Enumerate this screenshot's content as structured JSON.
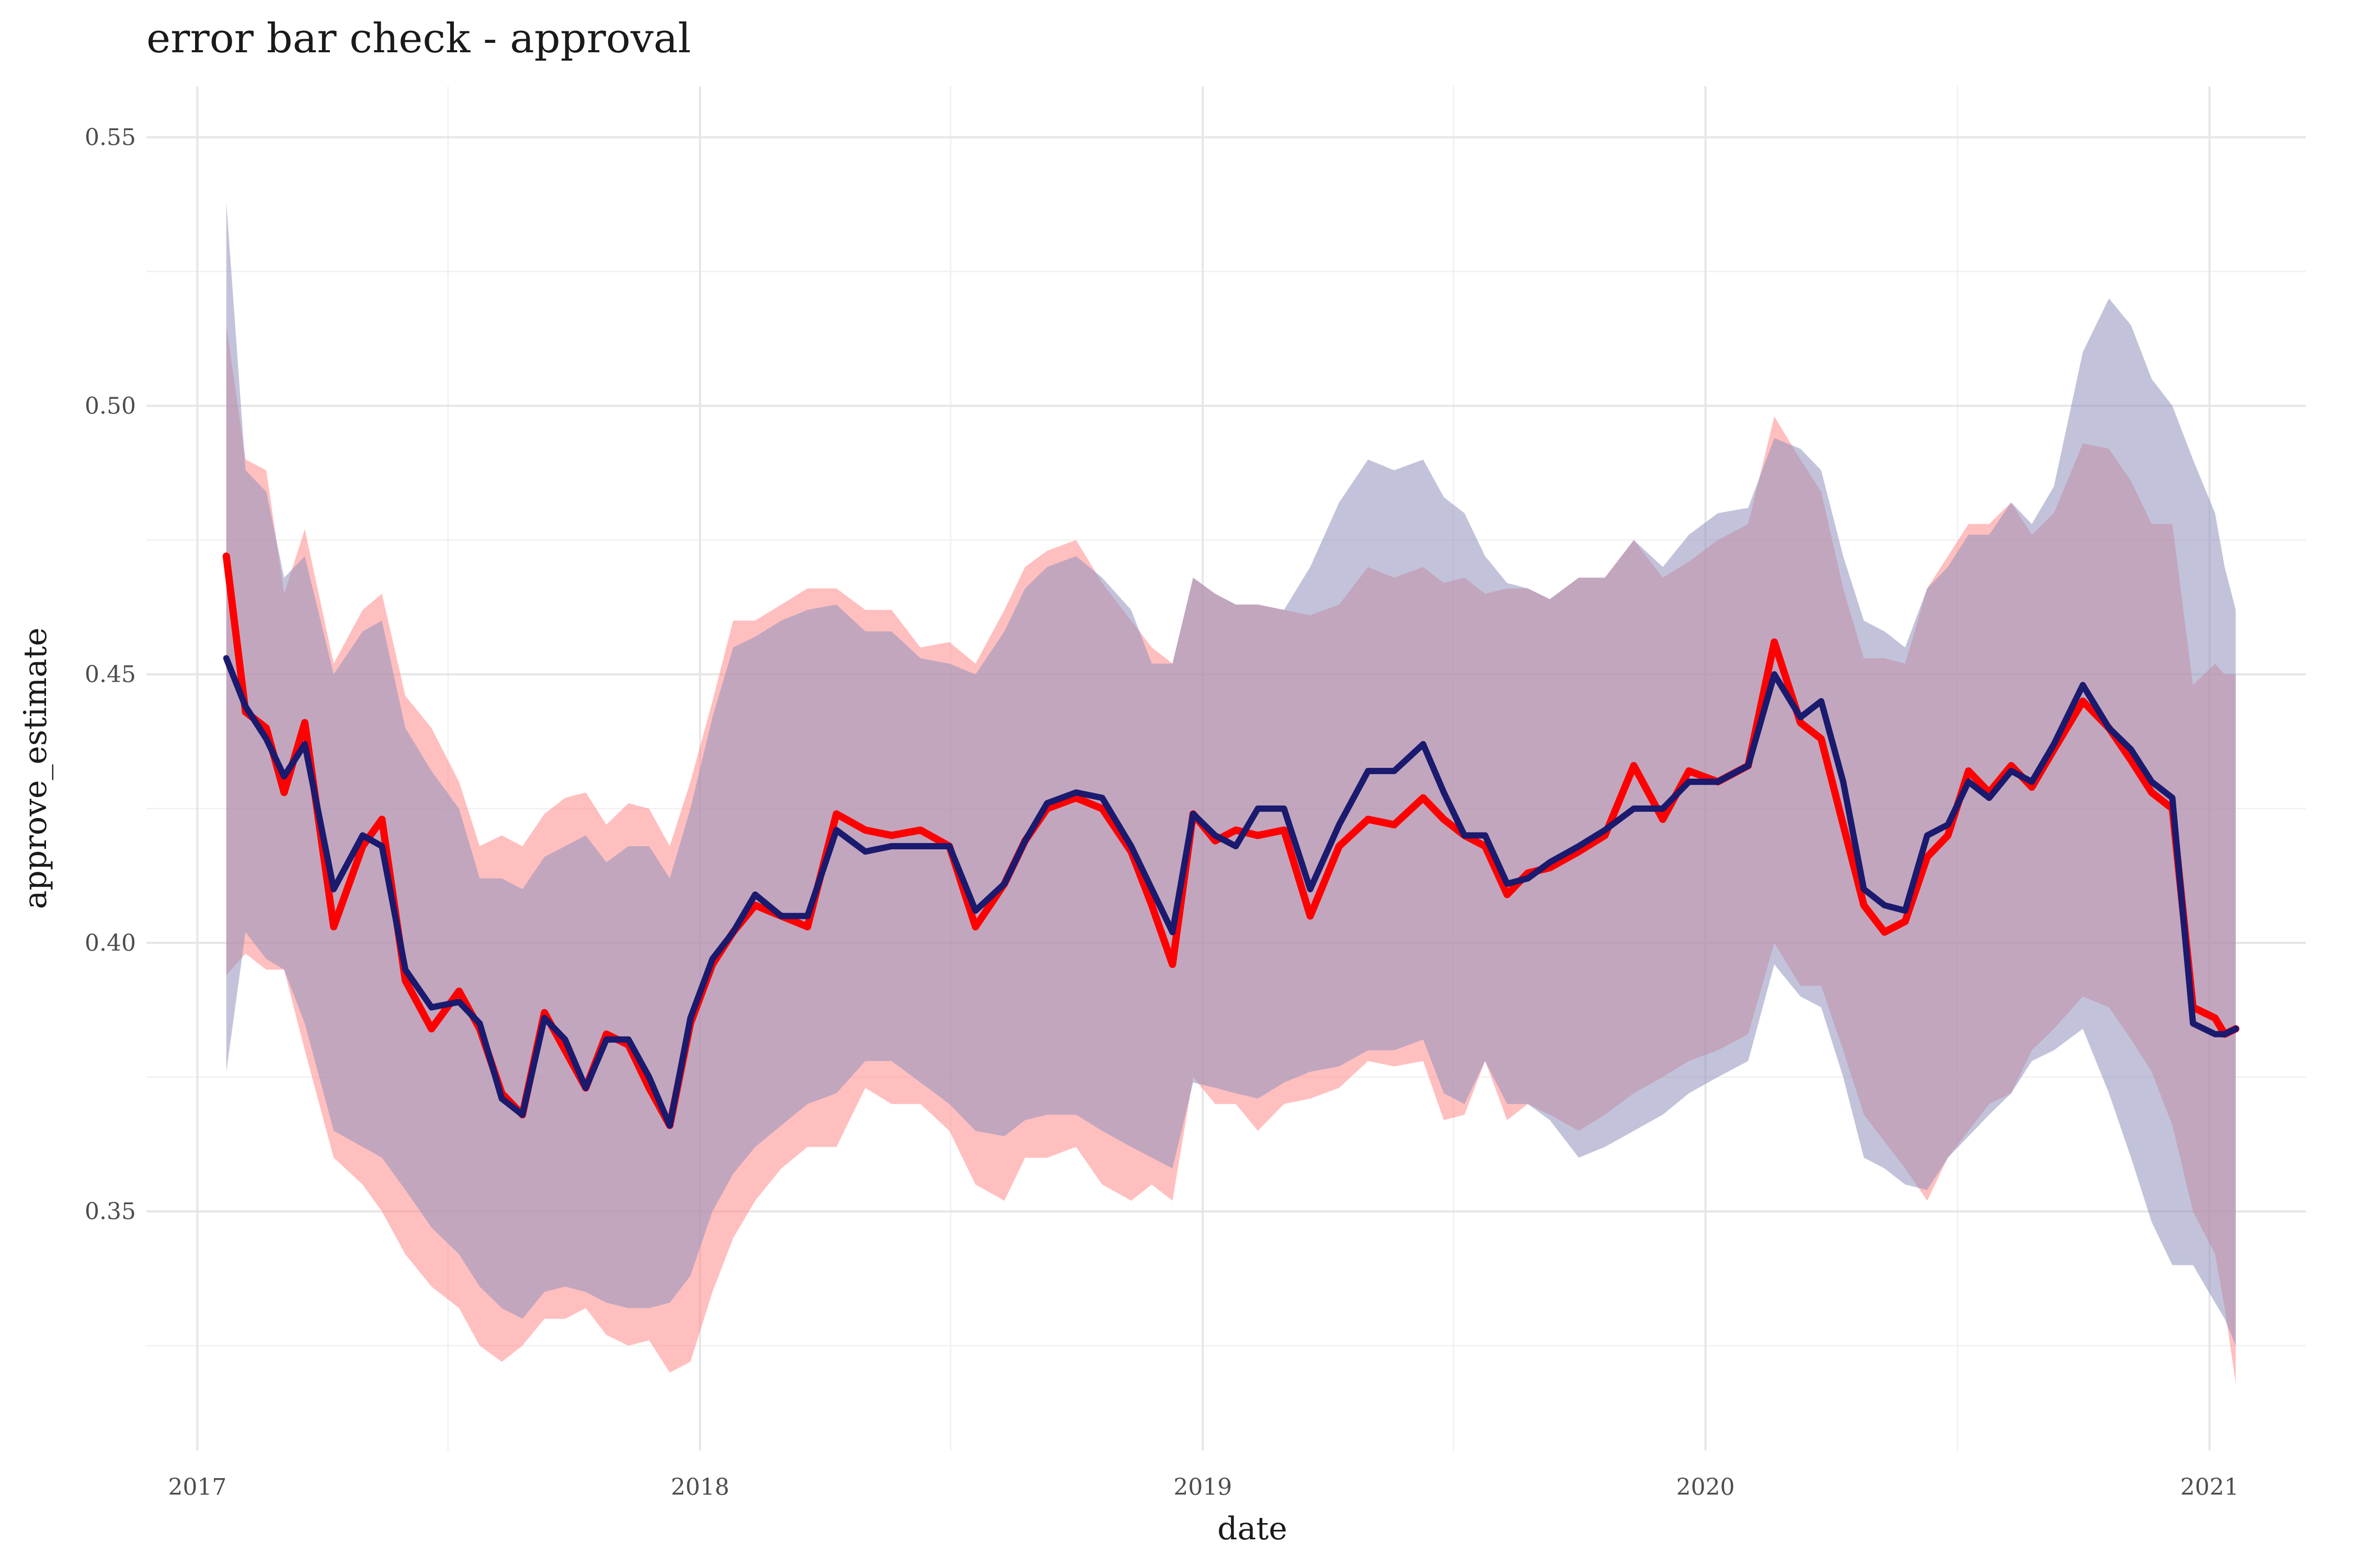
{
  "chart_data": {
    "type": "area",
    "title": "error bar check - approval",
    "xlabel": "date",
    "ylabel": "approve_estimate",
    "x_ticks": [
      "2017",
      "2018",
      "2019",
      "2020",
      "2021"
    ],
    "y_ticks": [
      "0.35",
      "0.40",
      "0.45",
      "0.50",
      "0.55"
    ],
    "xlim": [
      "2016-11-25",
      "2021-03-12"
    ],
    "ylim": [
      0.3055,
      0.5595
    ],
    "grid": true,
    "legend": "none",
    "series": [
      {
        "color": "#ff0000",
        "fill_color": "#ff7f7f",
        "x": [
          "2017-01-22",
          "2017-02-05",
          "2017-02-20",
          "2017-03-05",
          "2017-03-20",
          "2017-04-10",
          "2017-05-01",
          "2017-05-15",
          "2017-06-01",
          "2017-06-20",
          "2017-07-10",
          "2017-07-25",
          "2017-08-10",
          "2017-08-25",
          "2017-09-10",
          "2017-09-25",
          "2017-10-10",
          "2017-10-25",
          "2017-11-10",
          "2017-11-25",
          "2017-12-10",
          "2017-12-25",
          "2018-01-10",
          "2018-01-25",
          "2018-02-10",
          "2018-03-01",
          "2018-03-20",
          "2018-04-10",
          "2018-05-01",
          "2018-05-20",
          "2018-06-10",
          "2018-07-01",
          "2018-07-20",
          "2018-08-10",
          "2018-08-25",
          "2018-09-10",
          "2018-10-01",
          "2018-10-20",
          "2018-11-10",
          "2018-11-25",
          "2018-12-10",
          "2018-12-25",
          "2019-01-10",
          "2019-01-25",
          "2019-02-10",
          "2019-03-01",
          "2019-03-20",
          "2019-04-10",
          "2019-05-01",
          "2019-05-20",
          "2019-06-10",
          "2019-06-25",
          "2019-07-10",
          "2019-07-25",
          "2019-08-10",
          "2019-08-25",
          "2019-09-10",
          "2019-10-01",
          "2019-10-20",
          "2019-11-10",
          "2019-12-01",
          "2019-12-20",
          "2020-01-10",
          "2020-02-01",
          "2020-02-20",
          "2020-03-10",
          "2020-03-25",
          "2020-04-10",
          "2020-04-25",
          "2020-05-10",
          "2020-05-25",
          "2020-06-10",
          "2020-06-25",
          "2020-07-10",
          "2020-07-25",
          "2020-08-10",
          "2020-08-25",
          "2020-09-10",
          "2020-10-01",
          "2020-10-20",
          "2020-11-05",
          "2020-11-20",
          "2020-12-05",
          "2020-12-20",
          "2021-01-05",
          "2021-01-12",
          "2021-01-20"
        ],
        "values": [
          0.472,
          0.443,
          0.44,
          0.428,
          0.441,
          0.403,
          0.418,
          0.423,
          0.393,
          0.384,
          0.391,
          0.384,
          0.372,
          0.368,
          0.387,
          0.38,
          0.373,
          0.383,
          0.381,
          0.373,
          0.366,
          0.385,
          0.396,
          0.402,
          0.407,
          0.405,
          0.403,
          0.424,
          0.421,
          0.42,
          0.421,
          0.418,
          0.403,
          0.411,
          0.419,
          0.425,
          0.427,
          0.425,
          0.417,
          0.407,
          0.396,
          0.424,
          0.419,
          0.421,
          0.42,
          0.421,
          0.405,
          0.418,
          0.423,
          0.422,
          0.427,
          0.423,
          0.42,
          0.418,
          0.409,
          0.413,
          0.414,
          0.417,
          0.42,
          0.433,
          0.423,
          0.432,
          0.43,
          0.433,
          0.456,
          0.441,
          0.438,
          0.422,
          0.407,
          0.402,
          0.404,
          0.416,
          0.42,
          0.432,
          0.428,
          0.433,
          0.429,
          0.436,
          0.445,
          0.44,
          0.434,
          0.428,
          0.425,
          0.388,
          0.386,
          0.383,
          0.384
        ],
        "lower": [
          0.394,
          0.398,
          0.395,
          0.395,
          0.38,
          0.36,
          0.355,
          0.35,
          0.342,
          0.336,
          0.332,
          0.325,
          0.322,
          0.325,
          0.33,
          0.33,
          0.332,
          0.327,
          0.325,
          0.326,
          0.32,
          0.322,
          0.335,
          0.345,
          0.352,
          0.358,
          0.362,
          0.362,
          0.373,
          0.37,
          0.37,
          0.365,
          0.355,
          0.352,
          0.36,
          0.36,
          0.362,
          0.355,
          0.352,
          0.355,
          0.352,
          0.375,
          0.37,
          0.37,
          0.365,
          0.37,
          0.371,
          0.373,
          0.378,
          0.377,
          0.378,
          0.367,
          0.368,
          0.378,
          0.367,
          0.37,
          0.368,
          0.365,
          0.368,
          0.372,
          0.375,
          0.378,
          0.38,
          0.383,
          0.4,
          0.392,
          0.392,
          0.38,
          0.368,
          0.363,
          0.358,
          0.352,
          0.36,
          0.365,
          0.37,
          0.372,
          0.38,
          0.384,
          0.39,
          0.388,
          0.382,
          0.376,
          0.366,
          0.35,
          0.342,
          0.332,
          0.318
        ],
        "upper": [
          0.515,
          0.49,
          0.488,
          0.465,
          0.477,
          0.452,
          0.462,
          0.465,
          0.446,
          0.44,
          0.43,
          0.418,
          0.42,
          0.418,
          0.424,
          0.427,
          0.428,
          0.422,
          0.426,
          0.425,
          0.418,
          0.43,
          0.445,
          0.46,
          0.46,
          0.463,
          0.466,
          0.466,
          0.462,
          0.462,
          0.455,
          0.456,
          0.452,
          0.462,
          0.47,
          0.473,
          0.475,
          0.467,
          0.46,
          0.455,
          0.452,
          0.468,
          0.465,
          0.463,
          0.463,
          0.462,
          0.461,
          0.463,
          0.47,
          0.468,
          0.47,
          0.467,
          0.468,
          0.465,
          0.466,
          0.466,
          0.464,
          0.468,
          0.468,
          0.475,
          0.468,
          0.471,
          0.475,
          0.478,
          0.498,
          0.49,
          0.484,
          0.466,
          0.453,
          0.453,
          0.452,
          0.466,
          0.472,
          0.478,
          0.478,
          0.482,
          0.476,
          0.48,
          0.493,
          0.492,
          0.486,
          0.478,
          0.478,
          0.448,
          0.452,
          0.45,
          0.45
        ]
      },
      {
        "color": "#1a1a6e",
        "fill_color": "#8f92bd",
        "x": [
          "2017-01-22",
          "2017-02-05",
          "2017-02-20",
          "2017-03-05",
          "2017-03-20",
          "2017-04-10",
          "2017-05-01",
          "2017-05-15",
          "2017-06-01",
          "2017-06-20",
          "2017-07-10",
          "2017-07-25",
          "2017-08-10",
          "2017-08-25",
          "2017-09-10",
          "2017-09-25",
          "2017-10-10",
          "2017-10-25",
          "2017-11-10",
          "2017-11-25",
          "2017-12-10",
          "2017-12-25",
          "2018-01-10",
          "2018-01-25",
          "2018-02-10",
          "2018-03-01",
          "2018-03-20",
          "2018-04-10",
          "2018-05-01",
          "2018-05-20",
          "2018-06-10",
          "2018-07-01",
          "2018-07-20",
          "2018-08-10",
          "2018-08-25",
          "2018-09-10",
          "2018-10-01",
          "2018-10-20",
          "2018-11-10",
          "2018-11-25",
          "2018-12-10",
          "2018-12-25",
          "2019-01-10",
          "2019-01-25",
          "2019-02-10",
          "2019-03-01",
          "2019-03-20",
          "2019-04-10",
          "2019-05-01",
          "2019-05-20",
          "2019-06-10",
          "2019-06-25",
          "2019-07-10",
          "2019-07-25",
          "2019-08-10",
          "2019-08-25",
          "2019-09-10",
          "2019-10-01",
          "2019-10-20",
          "2019-11-10",
          "2019-12-01",
          "2019-12-20",
          "2020-01-10",
          "2020-02-01",
          "2020-02-20",
          "2020-03-10",
          "2020-03-25",
          "2020-04-10",
          "2020-04-25",
          "2020-05-10",
          "2020-05-25",
          "2020-06-10",
          "2020-06-25",
          "2020-07-10",
          "2020-07-25",
          "2020-08-10",
          "2020-08-25",
          "2020-09-10",
          "2020-10-01",
          "2020-10-20",
          "2020-11-05",
          "2020-11-20",
          "2020-12-05",
          "2020-12-20",
          "2021-01-05",
          "2021-01-12",
          "2021-01-20"
        ],
        "values": [
          0.453,
          0.444,
          0.438,
          0.431,
          0.437,
          0.41,
          0.42,
          0.418,
          0.395,
          0.388,
          0.389,
          0.385,
          0.371,
          0.368,
          0.386,
          0.382,
          0.373,
          0.382,
          0.382,
          0.375,
          0.366,
          0.386,
          0.397,
          0.402,
          0.409,
          0.405,
          0.405,
          0.421,
          0.417,
          0.418,
          0.418,
          0.418,
          0.406,
          0.411,
          0.419,
          0.426,
          0.428,
          0.427,
          0.418,
          0.41,
          0.402,
          0.424,
          0.42,
          0.418,
          0.425,
          0.425,
          0.41,
          0.422,
          0.432,
          0.432,
          0.437,
          0.428,
          0.42,
          0.42,
          0.411,
          0.412,
          0.415,
          0.418,
          0.421,
          0.425,
          0.425,
          0.43,
          0.43,
          0.433,
          0.45,
          0.442,
          0.445,
          0.43,
          0.41,
          0.407,
          0.406,
          0.42,
          0.422,
          0.43,
          0.427,
          0.432,
          0.43,
          0.437,
          0.448,
          0.44,
          0.436,
          0.43,
          0.427,
          0.385,
          0.383,
          0.383,
          0.384
        ],
        "lower": [
          0.376,
          0.402,
          0.397,
          0.395,
          0.385,
          0.365,
          0.362,
          0.36,
          0.354,
          0.347,
          0.342,
          0.336,
          0.332,
          0.33,
          0.335,
          0.336,
          0.335,
          0.333,
          0.332,
          0.332,
          0.333,
          0.338,
          0.35,
          0.357,
          0.362,
          0.366,
          0.37,
          0.372,
          0.378,
          0.378,
          0.374,
          0.37,
          0.365,
          0.364,
          0.367,
          0.368,
          0.368,
          0.365,
          0.362,
          0.36,
          0.358,
          0.374,
          0.373,
          0.372,
          0.371,
          0.374,
          0.376,
          0.377,
          0.38,
          0.38,
          0.382,
          0.372,
          0.37,
          0.378,
          0.37,
          0.37,
          0.367,
          0.36,
          0.362,
          0.365,
          0.368,
          0.372,
          0.375,
          0.378,
          0.396,
          0.39,
          0.388,
          0.375,
          0.36,
          0.358,
          0.355,
          0.354,
          0.36,
          0.364,
          0.368,
          0.372,
          0.378,
          0.38,
          0.384,
          0.372,
          0.36,
          0.348,
          0.34,
          0.34,
          0.333,
          0.33,
          0.325
        ],
        "upper": [
          0.538,
          0.488,
          0.484,
          0.468,
          0.472,
          0.45,
          0.458,
          0.46,
          0.44,
          0.432,
          0.425,
          0.412,
          0.412,
          0.41,
          0.416,
          0.418,
          0.42,
          0.415,
          0.418,
          0.418,
          0.412,
          0.425,
          0.442,
          0.455,
          0.457,
          0.46,
          0.462,
          0.463,
          0.458,
          0.458,
          0.453,
          0.452,
          0.45,
          0.458,
          0.466,
          0.47,
          0.472,
          0.468,
          0.462,
          0.452,
          0.452,
          0.468,
          0.465,
          0.463,
          0.463,
          0.462,
          0.47,
          0.482,
          0.49,
          0.488,
          0.49,
          0.483,
          0.48,
          0.472,
          0.467,
          0.466,
          0.464,
          0.468,
          0.468,
          0.475,
          0.47,
          0.476,
          0.48,
          0.481,
          0.494,
          0.492,
          0.488,
          0.472,
          0.46,
          0.458,
          0.455,
          0.466,
          0.47,
          0.476,
          0.476,
          0.482,
          0.478,
          0.485,
          0.51,
          0.52,
          0.515,
          0.505,
          0.5,
          0.49,
          0.48,
          0.47,
          0.462
        ]
      }
    ]
  }
}
